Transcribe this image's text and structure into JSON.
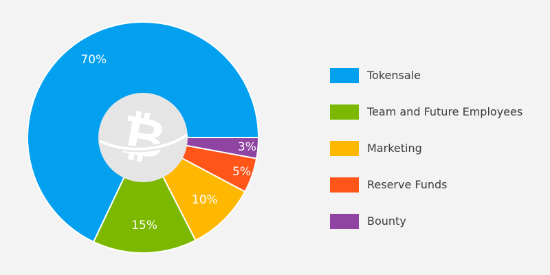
{
  "chart_data": {
    "type": "pie",
    "style": "donut with center logo",
    "categories": [
      "Tokensale",
      "Team and Future Employees",
      "Marketing",
      "Reserve Funds",
      "Bounty"
    ],
    "values": [
      70,
      15,
      10,
      5,
      3
    ],
    "data_labels": [
      "70%",
      "15%",
      "10%",
      "5%",
      "3%"
    ],
    "colors": [
      "#02a0ef",
      "#7db800",
      "#ffb800",
      "#ff5519",
      "#8e44a0"
    ],
    "legend_position": "right",
    "title": "",
    "center_icon": "bitcoin-logo-icon"
  },
  "background_color": "#f3f3f3",
  "center_circle_color": "#e5e5e5",
  "center_logo_color": "#ffffff"
}
